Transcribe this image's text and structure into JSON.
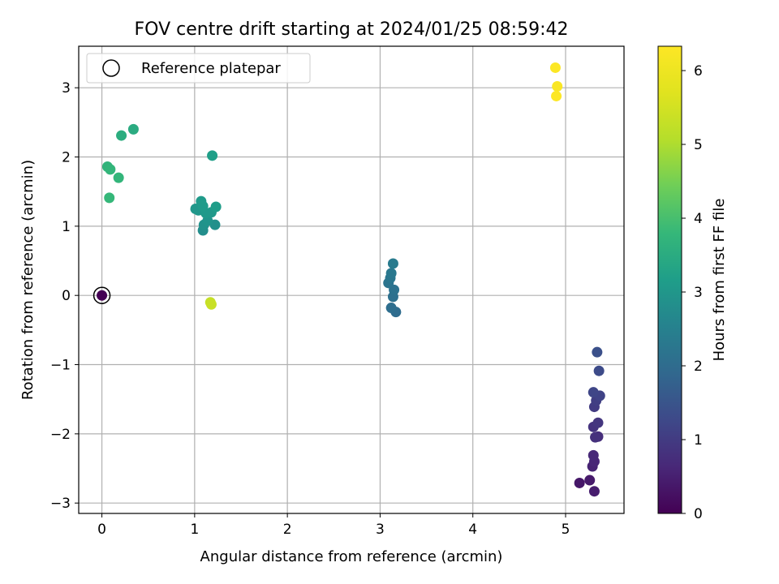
{
  "chart_data": {
    "type": "scatter",
    "title": "FOV centre drift starting at 2024/01/25 08:59:42",
    "xlabel": "Angular distance from reference (arcmin)",
    "ylabel": "Rotation from reference (arcmin)",
    "xlim": [
      -0.25,
      5.63
    ],
    "ylim": [
      -3.15,
      3.6
    ],
    "xticks": [
      0,
      1,
      2,
      3,
      4,
      5
    ],
    "yticks": [
      -3,
      -2,
      -1,
      0,
      1,
      2,
      3
    ],
    "ytick_labels": [
      "−3",
      "−2",
      "−1",
      "0",
      "1",
      "2",
      "3"
    ],
    "grid": true,
    "legend": {
      "label": "Reference platepar",
      "placement": "upper-left"
    },
    "reference_point": {
      "x": 0,
      "y": 0
    },
    "colorbar": {
      "label": "Hours from first FF file",
      "colormap": "viridis",
      "range": [
        0,
        6.33
      ],
      "ticks": [
        0,
        1,
        2,
        3,
        4,
        5,
        6
      ]
    },
    "points": [
      {
        "x": 0.0,
        "y": 0.0,
        "h": 0.0
      },
      {
        "x": 5.15,
        "y": -2.71,
        "h": 0.35
      },
      {
        "x": 5.26,
        "y": -2.67,
        "h": 0.4
      },
      {
        "x": 5.31,
        "y": -2.83,
        "h": 0.45
      },
      {
        "x": 5.29,
        "y": -2.47,
        "h": 0.55
      },
      {
        "x": 5.31,
        "y": -2.4,
        "h": 0.6
      },
      {
        "x": 5.3,
        "y": -2.31,
        "h": 0.65
      },
      {
        "x": 5.35,
        "y": -2.04,
        "h": 0.75
      },
      {
        "x": 5.32,
        "y": -2.05,
        "h": 0.8
      },
      {
        "x": 5.3,
        "y": -1.9,
        "h": 0.85
      },
      {
        "x": 5.35,
        "y": -1.84,
        "h": 0.9
      },
      {
        "x": 5.31,
        "y": -1.61,
        "h": 1.0
      },
      {
        "x": 5.33,
        "y": -1.52,
        "h": 1.05
      },
      {
        "x": 5.37,
        "y": -1.45,
        "h": 1.15
      },
      {
        "x": 5.3,
        "y": -1.4,
        "h": 1.2
      },
      {
        "x": 5.36,
        "y": -1.09,
        "h": 1.3
      },
      {
        "x": 5.34,
        "y": -0.82,
        "h": 1.4
      },
      {
        "x": 3.17,
        "y": -0.24,
        "h": 2.0
      },
      {
        "x": 3.12,
        "y": -0.18,
        "h": 2.05
      },
      {
        "x": 3.14,
        "y": -0.02,
        "h": 2.1
      },
      {
        "x": 3.15,
        "y": 0.08,
        "h": 2.15
      },
      {
        "x": 3.09,
        "y": 0.18,
        "h": 2.2
      },
      {
        "x": 3.11,
        "y": 0.25,
        "h": 2.25
      },
      {
        "x": 3.12,
        "y": 0.32,
        "h": 2.3
      },
      {
        "x": 3.14,
        "y": 0.46,
        "h": 2.35
      },
      {
        "x": 1.09,
        "y": 0.94,
        "h": 2.8
      },
      {
        "x": 1.22,
        "y": 1.02,
        "h": 2.85
      },
      {
        "x": 1.1,
        "y": 1.02,
        "h": 2.9
      },
      {
        "x": 1.14,
        "y": 1.08,
        "h": 2.95
      },
      {
        "x": 1.04,
        "y": 1.23,
        "h": 3.0
      },
      {
        "x": 1.01,
        "y": 1.25,
        "h": 3.0
      },
      {
        "x": 1.12,
        "y": 1.19,
        "h": 3.05
      },
      {
        "x": 1.18,
        "y": 1.2,
        "h": 3.05
      },
      {
        "x": 1.09,
        "y": 1.29,
        "h": 3.1
      },
      {
        "x": 1.07,
        "y": 1.36,
        "h": 3.1
      },
      {
        "x": 1.23,
        "y": 1.28,
        "h": 3.15
      },
      {
        "x": 1.19,
        "y": 2.02,
        "h": 3.2
      },
      {
        "x": 0.34,
        "y": 2.4,
        "h": 3.5
      },
      {
        "x": 0.21,
        "y": 2.31,
        "h": 3.55
      },
      {
        "x": 0.06,
        "y": 1.86,
        "h": 3.7
      },
      {
        "x": 0.09,
        "y": 1.82,
        "h": 3.75
      },
      {
        "x": 0.18,
        "y": 1.7,
        "h": 3.75
      },
      {
        "x": 0.08,
        "y": 1.41,
        "h": 3.8
      },
      {
        "x": 1.17,
        "y": -0.1,
        "h": 5.3
      },
      {
        "x": 1.18,
        "y": -0.13,
        "h": 5.35
      },
      {
        "x": 4.89,
        "y": 3.29,
        "h": 6.3
      },
      {
        "x": 4.91,
        "y": 3.02,
        "h": 6.25
      },
      {
        "x": 4.9,
        "y": 2.88,
        "h": 6.3
      }
    ]
  }
}
